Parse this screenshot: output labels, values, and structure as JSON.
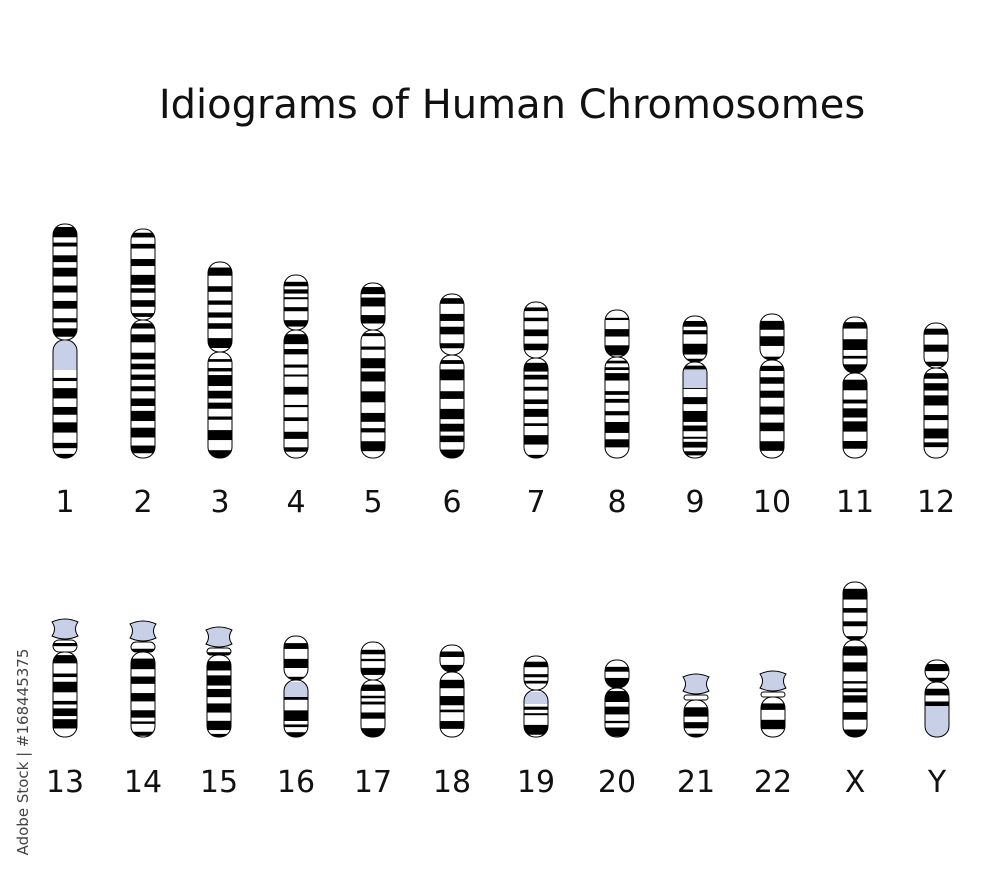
{
  "title": "Idiograms of Human Chromosomes",
  "credit": "Adobe Stock | #168445375",
  "chromosomes": [
    {
      "label": "1"
    },
    {
      "label": "2"
    },
    {
      "label": "3"
    },
    {
      "label": "4"
    },
    {
      "label": "5"
    },
    {
      "label": "6"
    },
    {
      "label": "7"
    },
    {
      "label": "8"
    },
    {
      "label": "9"
    },
    {
      "label": "10"
    },
    {
      "label": "11"
    },
    {
      "label": "12"
    },
    {
      "label": "13"
    },
    {
      "label": "14"
    },
    {
      "label": "15"
    },
    {
      "label": "16"
    },
    {
      "label": "17"
    },
    {
      "label": "18"
    },
    {
      "label": "19"
    },
    {
      "label": "20"
    },
    {
      "label": "21"
    },
    {
      "label": "22"
    },
    {
      "label": "X"
    },
    {
      "label": "Y"
    }
  ]
}
